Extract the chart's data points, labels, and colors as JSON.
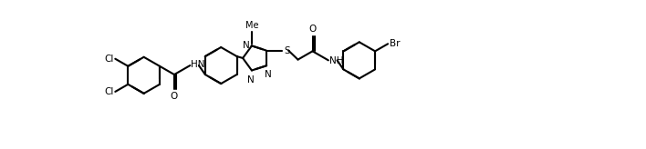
{
  "bg_color": "#ffffff",
  "line_color": "#000000",
  "lw": 1.5,
  "fs": 7.5,
  "figsize": [
    7.08,
    1.64
  ],
  "dpi": 100,
  "r_hex": 0.52,
  "r_tri": 0.37,
  "xlim": [
    0.0,
    14.16
  ],
  "ylim": [
    0.3,
    3.58
  ],
  "labels": {
    "Cl": "Cl",
    "O": "O",
    "HN": "HN",
    "N": "N",
    "Me": "Me",
    "S": "S",
    "NH": "NH",
    "Br": "Br"
  }
}
